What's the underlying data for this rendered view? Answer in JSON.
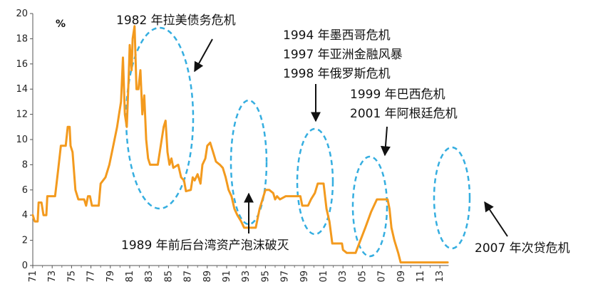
{
  "chart_data": {
    "type": "line",
    "ylabel": "%",
    "ylim": [
      0,
      20
    ],
    "y_ticks": [
      "0",
      "2",
      "4",
      "6",
      "8",
      "10",
      "12",
      "14",
      "16",
      "18",
      "20"
    ],
    "x_ticks": [
      "71",
      "73",
      "75",
      "77",
      "79",
      "81",
      "83",
      "85",
      "87",
      "89",
      "91",
      "93",
      "95",
      "97",
      "99",
      "01",
      "03",
      "05",
      "07",
      "09",
      "11",
      "13"
    ],
    "grid": false,
    "line_color": "#f39a1e",
    "highlight_color": "#35aee0",
    "series": [
      {
        "values": [
          [
            1971.0,
            4.0
          ],
          [
            1971.2,
            3.5
          ],
          [
            1971.5,
            3.5
          ],
          [
            1971.6,
            5.0
          ],
          [
            1971.9,
            5.0
          ],
          [
            1972.1,
            4.0
          ],
          [
            1972.4,
            4.0
          ],
          [
            1972.5,
            5.5
          ],
          [
            1973.3,
            5.5
          ],
          [
            1973.6,
            7.5
          ],
          [
            1973.9,
            9.5
          ],
          [
            1974.4,
            9.5
          ],
          [
            1974.6,
            11.0
          ],
          [
            1974.8,
            11.0
          ],
          [
            1974.9,
            9.5
          ],
          [
            1975.1,
            9.0
          ],
          [
            1975.4,
            6.0
          ],
          [
            1975.7,
            5.25
          ],
          [
            1976.3,
            5.25
          ],
          [
            1976.5,
            4.75
          ],
          [
            1976.7,
            5.5
          ],
          [
            1976.9,
            5.5
          ],
          [
            1977.1,
            4.75
          ],
          [
            1977.8,
            4.75
          ],
          [
            1978.0,
            6.5
          ],
          [
            1978.5,
            7.0
          ],
          [
            1978.9,
            8.0
          ],
          [
            1979.3,
            9.5
          ],
          [
            1979.7,
            11.0
          ],
          [
            1979.9,
            12.0
          ],
          [
            1980.1,
            13.0
          ],
          [
            1980.3,
            16.5
          ],
          [
            1980.5,
            12.0
          ],
          [
            1980.7,
            11.0
          ],
          [
            1980.9,
            15.0
          ],
          [
            1981.0,
            17.5
          ],
          [
            1981.2,
            15.5
          ],
          [
            1981.3,
            18.0
          ],
          [
            1981.5,
            19.0
          ],
          [
            1981.7,
            14.0
          ],
          [
            1981.9,
            14.0
          ],
          [
            1982.1,
            15.5
          ],
          [
            1982.3,
            12.0
          ],
          [
            1982.5,
            13.5
          ],
          [
            1982.7,
            10.0
          ],
          [
            1982.9,
            8.5
          ],
          [
            1983.1,
            8.0
          ],
          [
            1983.9,
            8.0
          ],
          [
            1984.2,
            9.5
          ],
          [
            1984.5,
            11.0
          ],
          [
            1984.7,
            11.5
          ],
          [
            1984.9,
            9.0
          ],
          [
            1985.1,
            8.0
          ],
          [
            1985.3,
            8.5
          ],
          [
            1985.5,
            7.75
          ],
          [
            1986.0,
            8.0
          ],
          [
            1986.3,
            7.0
          ],
          [
            1986.6,
            6.75
          ],
          [
            1986.8,
            5.9
          ],
          [
            1987.3,
            6.0
          ],
          [
            1987.5,
            7.0
          ],
          [
            1987.7,
            6.75
          ],
          [
            1988.0,
            7.25
          ],
          [
            1988.3,
            6.5
          ],
          [
            1988.5,
            8.0
          ],
          [
            1988.8,
            8.5
          ],
          [
            1989.0,
            9.5
          ],
          [
            1989.3,
            9.75
          ],
          [
            1989.6,
            9.0
          ],
          [
            1989.9,
            8.25
          ],
          [
            1990.3,
            8.0
          ],
          [
            1990.6,
            7.75
          ],
          [
            1990.9,
            7.0
          ],
          [
            1991.2,
            6.0
          ],
          [
            1991.5,
            5.5
          ],
          [
            1991.8,
            4.5
          ],
          [
            1992.1,
            4.0
          ],
          [
            1992.5,
            3.5
          ],
          [
            1992.8,
            3.0
          ],
          [
            1993.0,
            3.0
          ],
          [
            1994.0,
            3.0
          ],
          [
            1994.4,
            4.5
          ],
          [
            1994.8,
            5.5
          ],
          [
            1995.0,
            6.0
          ],
          [
            1995.4,
            6.0
          ],
          [
            1995.8,
            5.75
          ],
          [
            1996.0,
            5.25
          ],
          [
            1996.2,
            5.5
          ],
          [
            1996.5,
            5.25
          ],
          [
            1997.1,
            5.5
          ],
          [
            1998.6,
            5.5
          ],
          [
            1998.8,
            4.75
          ],
          [
            1999.4,
            4.75
          ],
          [
            1999.7,
            5.25
          ],
          [
            2000.1,
            5.75
          ],
          [
            2000.4,
            6.5
          ],
          [
            2001.0,
            6.5
          ],
          [
            2001.3,
            4.5
          ],
          [
            2001.6,
            3.5
          ],
          [
            2001.9,
            1.75
          ],
          [
            2002.9,
            1.75
          ],
          [
            2003.0,
            1.25
          ],
          [
            2003.4,
            1.0
          ],
          [
            2004.3,
            1.0
          ],
          [
            2004.8,
            2.0
          ],
          [
            2005.3,
            3.0
          ],
          [
            2005.9,
            4.25
          ],
          [
            2006.5,
            5.25
          ],
          [
            2007.6,
            5.25
          ],
          [
            2007.8,
            4.5
          ],
          [
            2008.0,
            3.0
          ],
          [
            2008.3,
            2.0
          ],
          [
            2008.7,
            1.0
          ],
          [
            2008.95,
            0.25
          ],
          [
            2013.8,
            0.25
          ]
        ]
      }
    ],
    "annotations": [
      {
        "text": "1982 年拉美债务危机"
      },
      {
        "text": "1994 年墨西哥危机"
      },
      {
        "text": "1997 年亚洲金融风暴"
      },
      {
        "text": "1998 年俄罗斯危机"
      },
      {
        "text": "1999 年巴西危机"
      },
      {
        "text": "2001 年阿根廷危机"
      },
      {
        "text": "1989 年前后台湾资产泡沫破灭"
      },
      {
        "text": "2007 年次贷危机"
      }
    ]
  }
}
